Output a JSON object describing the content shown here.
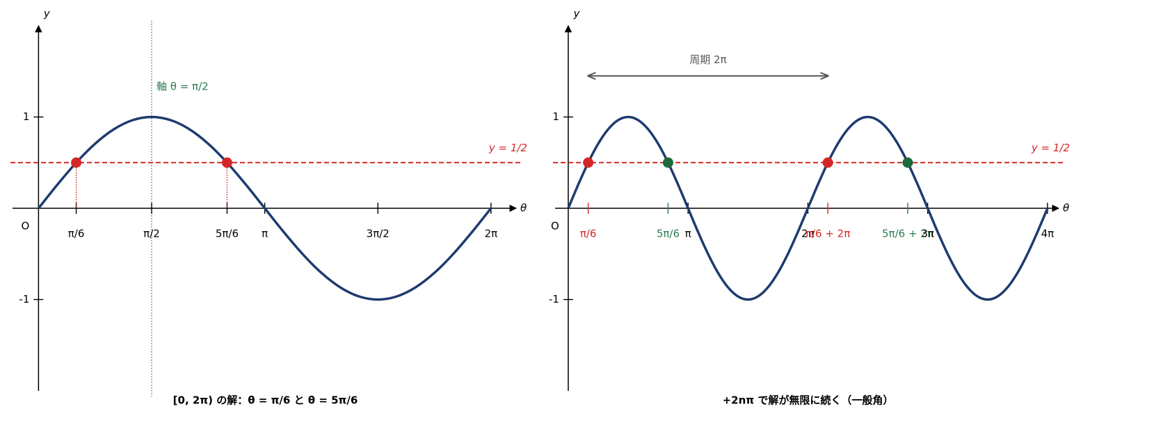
{
  "chart_data": [
    {
      "type": "line",
      "caption": "[0, 2π) の解：θ = π/6 と θ = 5π/6",
      "xlabel": "θ",
      "ylabel": "y",
      "origin_label": "O",
      "xlim": [
        -0.39,
        6.69
      ],
      "ylim": [
        -2,
        2
      ],
      "xticks": [
        {
          "value": 0.5236,
          "label": "π/6",
          "color": "#000000"
        },
        {
          "value": 1.5708,
          "label": "π/2",
          "color": "#000000"
        },
        {
          "value": 2.618,
          "label": "5π/6",
          "color": "#000000"
        },
        {
          "value": 3.1416,
          "label": "π",
          "color": "#000000"
        },
        {
          "value": 4.7124,
          "label": "3π/2",
          "color": "#000000"
        },
        {
          "value": 6.2832,
          "label": "2π",
          "color": "#000000"
        }
      ],
      "yticks": [
        1,
        -1
      ],
      "series": [
        {
          "color": "#1f3b6e",
          "x": [
            0,
            0.2618,
            0.5236,
            0.7854,
            1.0472,
            1.309,
            1.5708,
            1.8326,
            2.0944,
            2.3562,
            2.618,
            2.8798,
            3.1416,
            3.4034,
            3.6652,
            3.927,
            4.1888,
            4.4506,
            4.7124,
            4.9742,
            5.236,
            5.4978,
            5.7596,
            6.0214,
            6.2832
          ],
          "values": [
            0,
            0.2588,
            0.5,
            0.7071,
            0.866,
            0.9659,
            1,
            0.9659,
            0.866,
            0.7071,
            0.5,
            0.2588,
            0,
            -0.2588,
            -0.5,
            -0.7071,
            -0.866,
            -0.9659,
            -1,
            -0.9659,
            -0.866,
            -0.7071,
            -0.5,
            -0.2588,
            0
          ]
        }
      ],
      "points": {
        "x": [
          0.5236,
          2.618
        ],
        "values": [
          0.5,
          0.5
        ],
        "colors": [
          "#d62728",
          "#d62728"
        ]
      },
      "drop_lines": true,
      "hline": {
        "value": 0.5,
        "label": "y = 1/2",
        "color": "#d62728"
      },
      "vline": {
        "value": 1.5708,
        "label": "軸 θ = π/2",
        "color": "#2e7d4f"
      }
    },
    {
      "type": "line",
      "caption": "+2nπ で解が無限に続く（一般角）",
      "xlabel": "θ",
      "ylabel": "y",
      "origin_label": "O",
      "xlim": [
        -0.4,
        12.97
      ],
      "ylim": [
        -2,
        2
      ],
      "xticks": [
        {
          "value": 0.5236,
          "label": "π/6",
          "color": "#d62728"
        },
        {
          "value": 2.618,
          "label": "5π/6",
          "color": "#2e7d4f"
        },
        {
          "value": 3.1416,
          "label": "π",
          "color": "#000000"
        },
        {
          "value": 6.2832,
          "label": "2π",
          "color": "#000000"
        },
        {
          "value": 6.8068,
          "label": "π/6 + 2π",
          "color": "#d62728"
        },
        {
          "value": 8.9012,
          "label": "5π/6 + 2π",
          "color": "#2e7d4f"
        },
        {
          "value": 9.4248,
          "label": "3π",
          "color": "#000000"
        },
        {
          "value": 12.5664,
          "label": "4π",
          "color": "#000000"
        }
      ],
      "yticks": [
        1,
        -1
      ],
      "series": [
        {
          "color": "#1f3b6e",
          "x": [
            0,
            0.2618,
            0.5236,
            0.7854,
            1.0472,
            1.309,
            1.5708,
            1.8326,
            2.0944,
            2.3562,
            2.618,
            2.8798,
            3.1416,
            3.4034,
            3.6652,
            3.927,
            4.1888,
            4.4506,
            4.7124,
            4.9742,
            5.236,
            5.4978,
            5.7596,
            6.0214,
            6.2832,
            6.545,
            6.8068,
            7.0686,
            7.3304,
            7.5922,
            7.854,
            8.1158,
            8.3776,
            8.6394,
            8.9012,
            9.163,
            9.4248,
            9.6866,
            9.9484,
            10.2102,
            10.472,
            10.7338,
            10.9956,
            11.2574,
            11.5192,
            11.781,
            12.0428,
            12.3046,
            12.5664
          ],
          "values": [
            0,
            0.2588,
            0.5,
            0.7071,
            0.866,
            0.9659,
            1,
            0.9659,
            0.866,
            0.7071,
            0.5,
            0.2588,
            0,
            -0.2588,
            -0.5,
            -0.7071,
            -0.866,
            -0.9659,
            -1,
            -0.9659,
            -0.866,
            -0.7071,
            -0.5,
            -0.2588,
            0,
            0.2588,
            0.5,
            0.7071,
            0.866,
            0.9659,
            1,
            0.9659,
            0.866,
            0.7071,
            0.5,
            0.2588,
            0,
            -0.2588,
            -0.5,
            -0.7071,
            -0.866,
            -0.9659,
            -1,
            -0.9659,
            -0.866,
            -0.7071,
            -0.5,
            -0.2588,
            0
          ]
        }
      ],
      "points": {
        "x": [
          0.5236,
          2.618,
          6.8068,
          8.9012
        ],
        "values": [
          0.5,
          0.5,
          0.5,
          0.5
        ],
        "colors": [
          "#d62728",
          "#1b6b3a",
          "#d62728",
          "#1b6b3a"
        ]
      },
      "drop_lines": false,
      "hline": {
        "value": 0.5,
        "label": "y = 1/2",
        "color": "#d62728"
      },
      "period": {
        "x": [
          0.5236,
          6.8068
        ],
        "y": 1.45,
        "label": "周期 2π"
      }
    }
  ]
}
